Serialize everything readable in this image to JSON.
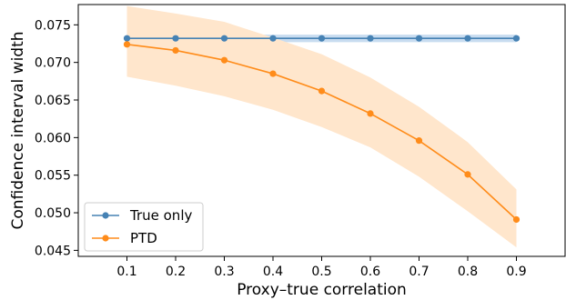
{
  "chart_data": {
    "type": "line",
    "xlabel": "Proxy–true correlation",
    "ylabel": "Confidence interval width",
    "x": [
      0.1,
      0.2,
      0.3,
      0.4,
      0.5,
      0.6,
      0.7,
      0.8,
      0.9
    ],
    "x_tick_labels": [
      "0.1",
      "0.2",
      "0.3",
      "0.4",
      "0.5",
      "0.6",
      "0.7",
      "0.8",
      "0.9"
    ],
    "xlim": [
      0.0,
      1.0
    ],
    "y_ticks": [
      0.045,
      0.05,
      0.055,
      0.06,
      0.065,
      0.07,
      0.075
    ],
    "y_tick_labels": [
      "0.045",
      "0.050",
      "0.055",
      "0.060",
      "0.065",
      "0.070",
      "0.075"
    ],
    "ylim": [
      0.0442,
      0.0777
    ],
    "grid": false,
    "legend_position": "lower-left",
    "series": [
      {
        "name": "True only",
        "color": "#4682b4",
        "band_color": "#c8dcf0",
        "values": [
          0.0732,
          0.0732,
          0.0732,
          0.0732,
          0.0732,
          0.0732,
          0.0732,
          0.0732,
          0.0732
        ],
        "lower": [
          0.0727,
          0.0727,
          0.0727,
          0.0727,
          0.0727,
          0.0727,
          0.0727,
          0.0727,
          0.0727
        ],
        "upper": [
          0.0737,
          0.0737,
          0.0737,
          0.0737,
          0.0737,
          0.0737,
          0.0737,
          0.0737,
          0.0737
        ]
      },
      {
        "name": "PTD",
        "color": "#ff8c1a",
        "band_color": "#ffe6cc",
        "values": [
          0.0724,
          0.0716,
          0.0703,
          0.0685,
          0.0662,
          0.0632,
          0.0596,
          0.0551,
          0.0491
        ],
        "lower": [
          0.0681,
          0.0669,
          0.0655,
          0.0637,
          0.0614,
          0.0587,
          0.0548,
          0.0502,
          0.0454
        ],
        "upper": [
          0.0775,
          0.0765,
          0.0754,
          0.0733,
          0.0711,
          0.068,
          0.0641,
          0.0594,
          0.0531
        ]
      }
    ]
  }
}
